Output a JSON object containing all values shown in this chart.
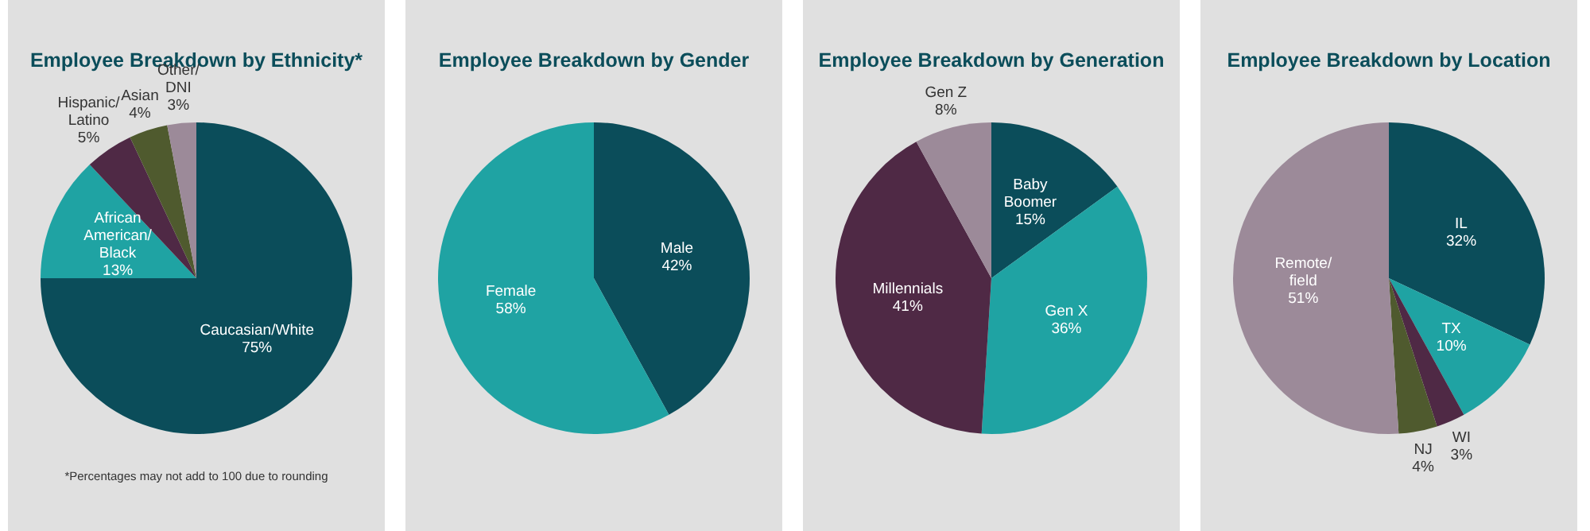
{
  "chart_data": [
    {
      "type": "pie",
      "title": "Employee Breakdown by Ethnicity*",
      "categories": [
        "Caucasian/White",
        "African\nAmerican/\nBlack",
        "Hispanic/\nLatino",
        "Asian",
        "Other/\nDNI"
      ],
      "values": [
        75,
        13,
        5,
        4,
        3
      ],
      "value_labels": [
        "75%",
        "13%",
        "5%",
        "4%",
        "3%"
      ],
      "colors": [
        "#0b4d5a",
        "#1fa3a3",
        "#4f2945",
        "#4f5a2e",
        "#9c8a99"
      ],
      "annotations": [
        "*Percentages may not add to 100 due to rounding"
      ]
    },
    {
      "type": "pie",
      "title": "Employee Breakdown by Gender",
      "categories": [
        "Male",
        "Female"
      ],
      "values": [
        42,
        58
      ],
      "value_labels": [
        "42%",
        "58%"
      ],
      "colors": [
        "#0b4d5a",
        "#1fa3a3"
      ]
    },
    {
      "type": "pie",
      "title": "Employee Breakdown by Generation",
      "categories": [
        "Baby\nBoomer",
        "Gen X",
        "Millennials",
        "Gen Z"
      ],
      "values": [
        15,
        36,
        41,
        8
      ],
      "value_labels": [
        "15%",
        "36%",
        "41%",
        "8%"
      ],
      "colors": [
        "#0b4d5a",
        "#1fa3a3",
        "#4f2945",
        "#9c8a99"
      ]
    },
    {
      "type": "pie",
      "title": "Employee Breakdown by Location",
      "categories": [
        "IL",
        "TX",
        "WI",
        "NJ",
        "Remote/\nfield"
      ],
      "values": [
        32,
        10,
        3,
        4,
        51
      ],
      "value_labels": [
        "32%",
        "10%",
        "3%",
        "4%",
        "51%"
      ],
      "colors": [
        "#0b4d5a",
        "#1fa3a3",
        "#4f2945",
        "#4f5a2e",
        "#9c8a99"
      ]
    }
  ]
}
